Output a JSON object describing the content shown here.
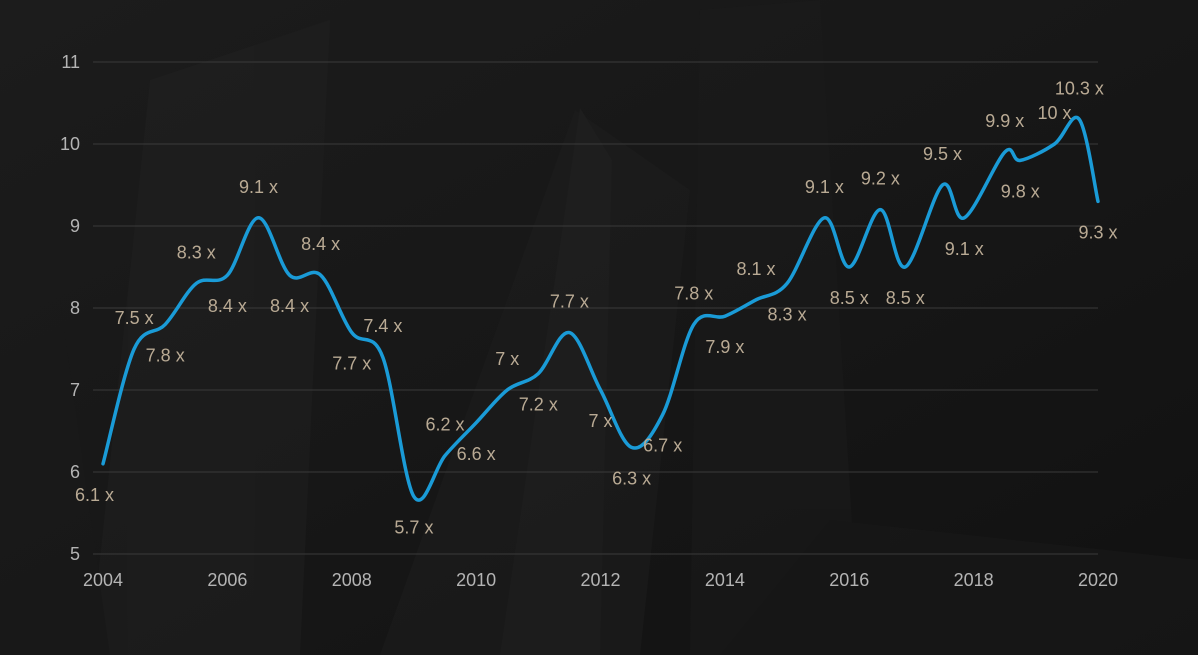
{
  "chart_data": {
    "type": "line",
    "title": "",
    "xlabel": "",
    "ylabel": "",
    "xlim": [
      2004,
      2020
    ],
    "ylim": [
      5,
      11
    ],
    "x_ticks": [
      "2004",
      "2006",
      "2008",
      "2010",
      "2012",
      "2014",
      "2016",
      "2018",
      "2020"
    ],
    "y_ticks": [
      "5",
      "6",
      "7",
      "8",
      "9",
      "10",
      "11"
    ],
    "grid": "horizontal",
    "colors": {
      "line": "#1a9bd7",
      "label": "#b9aa94",
      "tick": "#b4b4b4",
      "grid": "#3a3a3a",
      "background": "#141414"
    },
    "series": [
      {
        "points": [
          {
            "x": 2004.0,
            "y": 6.1,
            "label": "6.1 x"
          },
          {
            "x": 2004.5,
            "y": 7.5,
            "label": "7.5 x"
          },
          {
            "x": 2005.0,
            "y": 7.8,
            "label": "7.8 x"
          },
          {
            "x": 2005.5,
            "y": 8.3,
            "label": "8.3 x"
          },
          {
            "x": 2006.0,
            "y": 8.4,
            "label": "8.4 x"
          },
          {
            "x": 2006.5,
            "y": 9.1,
            "label": "9.1 x"
          },
          {
            "x": 2007.0,
            "y": 8.4,
            "label": "8.4 x"
          },
          {
            "x": 2007.5,
            "y": 8.4,
            "label": "8.4 x"
          },
          {
            "x": 2008.0,
            "y": 7.7,
            "label": "7.7 x"
          },
          {
            "x": 2008.5,
            "y": 7.4,
            "label": "7.4 x"
          },
          {
            "x": 2009.0,
            "y": 5.7,
            "label": "5.7 x"
          },
          {
            "x": 2009.5,
            "y": 6.2,
            "label": "6.2 x"
          },
          {
            "x": 2010.0,
            "y": 6.6,
            "label": "6.6 x"
          },
          {
            "x": 2010.5,
            "y": 7.0,
            "label": "7 x"
          },
          {
            "x": 2011.0,
            "y": 7.2,
            "label": "7.2 x"
          },
          {
            "x": 2011.5,
            "y": 7.7,
            "label": "7.7 x"
          },
          {
            "x": 2012.0,
            "y": 7.0,
            "label": "7 x"
          },
          {
            "x": 2012.5,
            "y": 6.3,
            "label": "6.3 x"
          },
          {
            "x": 2013.0,
            "y": 6.7,
            "label": "6.7 x"
          },
          {
            "x": 2013.5,
            "y": 7.8,
            "label": "7.8 x"
          },
          {
            "x": 2014.0,
            "y": 7.9,
            "label": "7.9 x"
          },
          {
            "x": 2014.5,
            "y": 8.1,
            "label": "8.1 x"
          },
          {
            "x": 2015.0,
            "y": 8.3,
            "label": "8.3 x"
          },
          {
            "x": 2015.6,
            "y": 9.1,
            "label": "9.1 x"
          },
          {
            "x": 2016.0,
            "y": 8.5,
            "label": "8.5 x"
          },
          {
            "x": 2016.5,
            "y": 9.2,
            "label": "9.2 x"
          },
          {
            "x": 2016.9,
            "y": 8.5,
            "label": "8.5 x"
          },
          {
            "x": 2017.5,
            "y": 9.5,
            "label": "9.5 x"
          },
          {
            "x": 2017.85,
            "y": 9.1,
            "label": "9.1 x"
          },
          {
            "x": 2018.5,
            "y": 9.9,
            "label": "9.9 x"
          },
          {
            "x": 2018.75,
            "y": 9.8,
            "label": "9.8 x"
          },
          {
            "x": 2019.3,
            "y": 10.0,
            "label": "10 x"
          },
          {
            "x": 2019.7,
            "y": 10.3,
            "label": "10.3 x"
          },
          {
            "x": 2020.0,
            "y": 9.3,
            "label": "9.3 x"
          }
        ]
      }
    ]
  }
}
